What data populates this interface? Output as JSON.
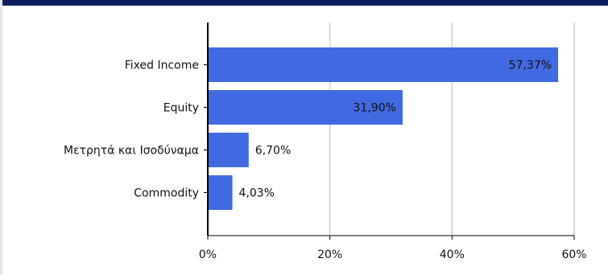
{
  "chart_data": {
    "type": "bar",
    "orientation": "horizontal",
    "categories": [
      "Fixed Income",
      "Equity",
      "Μετρητά και Ισοδύναμα",
      "Commodity"
    ],
    "values": [
      57.37,
      31.9,
      6.7,
      4.03
    ],
    "value_labels": [
      "57,37%",
      "31,90%",
      "6,70%",
      "4,03%"
    ],
    "xlim": [
      0,
      60
    ],
    "x_ticks": [
      0,
      20,
      40,
      60
    ],
    "x_tick_labels": [
      "0%",
      "20%",
      "40%",
      "60%"
    ],
    "title": "",
    "xlabel": "",
    "ylabel": "",
    "grid": true,
    "bar_color": "#4169e1",
    "grid_color": "#d9d9d9",
    "axis_color": "#000000"
  }
}
